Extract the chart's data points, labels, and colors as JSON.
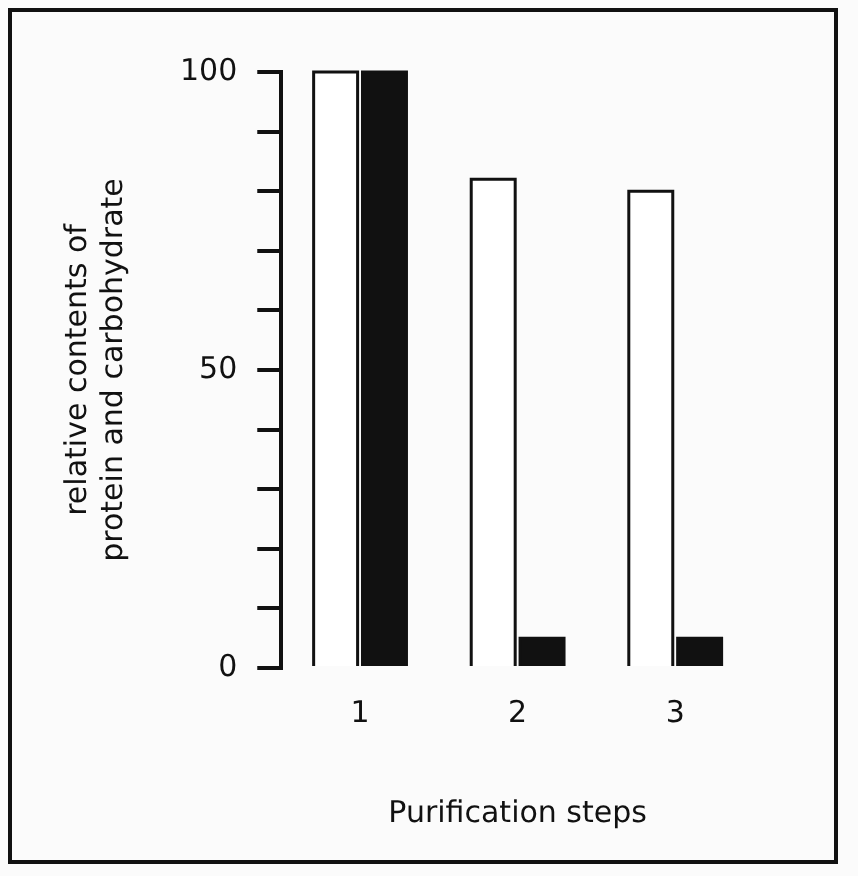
{
  "chart_data": {
    "type": "bar",
    "xlabel": "Purification steps",
    "ylabel": "relative contents of\nprotein and carbohydrate",
    "categories": [
      "1",
      "2",
      "3"
    ],
    "series": [
      {
        "color": "#ffffff",
        "values": [
          100,
          82,
          80
        ]
      },
      {
        "color": "#111111",
        "values": [
          100,
          5,
          5
        ]
      }
    ],
    "ylim": [
      0,
      100
    ],
    "yticks": [
      0,
      {
        "value": 10,
        "label": null
      },
      {
        "value": 20,
        "label": null
      },
      {
        "value": 30,
        "label": null
      },
      {
        "value": 40,
        "label": null
      },
      50,
      {
        "value": 60,
        "label": null
      },
      {
        "value": 70,
        "label": null
      },
      {
        "value": 80,
        "label": null
      },
      {
        "value": 90,
        "label": null
      },
      100
    ],
    "grid": false,
    "legend": false
  }
}
